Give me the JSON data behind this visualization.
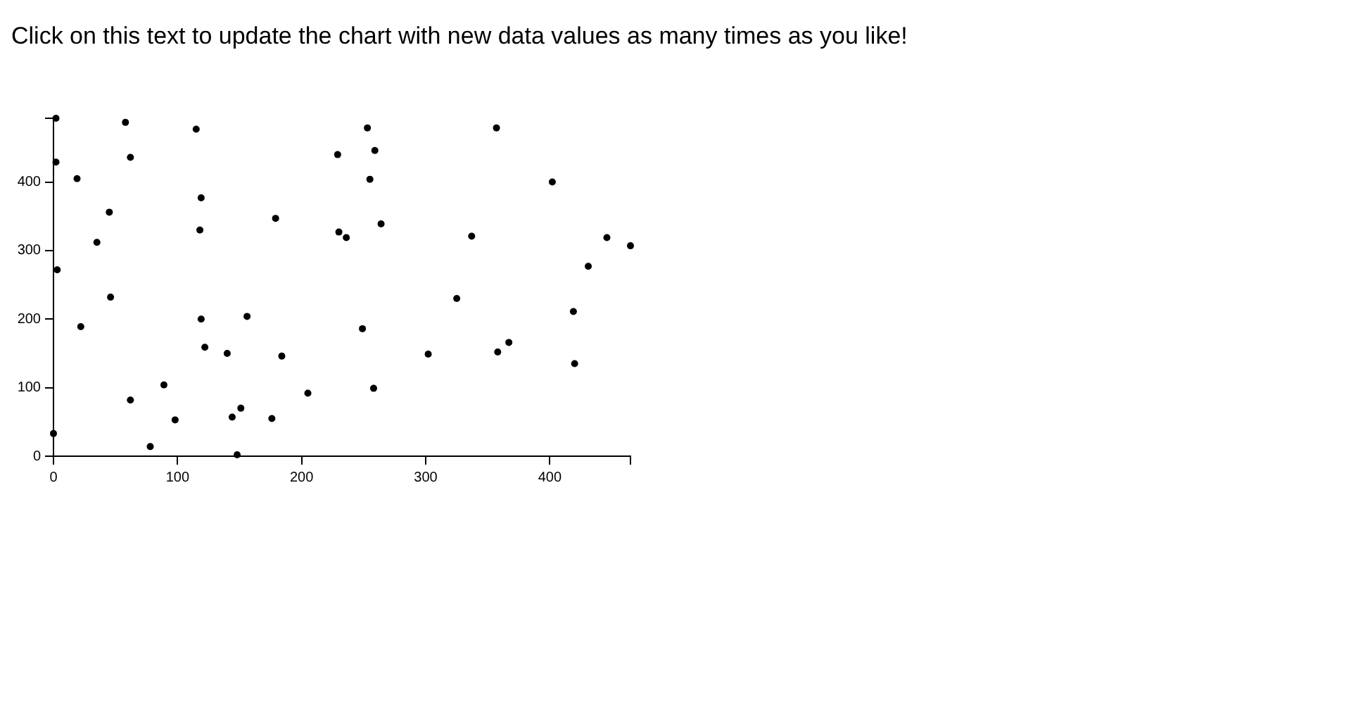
{
  "chart_data": {
    "type": "scatter",
    "title": "Click on this text to update the chart with new data values as many times as you like!",
    "x": [
      2,
      58,
      115,
      2,
      62,
      19,
      119,
      45,
      118,
      35,
      3,
      253,
      259,
      229,
      255,
      179,
      264,
      230,
      236,
      357,
      402,
      337,
      446,
      465,
      431,
      46,
      22,
      119,
      122,
      89,
      62,
      98,
      78,
      0,
      156,
      249,
      140,
      184,
      302,
      205,
      258,
      151,
      144,
      176,
      148,
      325,
      419,
      367,
      358,
      420
    ],
    "values": [
      493,
      487,
      477,
      429,
      436,
      405,
      377,
      356,
      330,
      312,
      272,
      479,
      446,
      440,
      404,
      347,
      339,
      327,
      319,
      479,
      400,
      321,
      319,
      307,
      277,
      232,
      189,
      200,
      159,
      104,
      82,
      53,
      14,
      33,
      204,
      186,
      150,
      146,
      149,
      92,
      99,
      70,
      57,
      55,
      2,
      230,
      211,
      166,
      152,
      135
    ],
    "color": "#000000",
    "marker": "circle",
    "xlim": [
      0,
      465
    ],
    "xticks": [
      0,
      100,
      200,
      300,
      400,
      {
        "value": 465,
        "label": null
      }
    ],
    "ylim": [
      0,
      493
    ],
    "yticks": [
      0,
      100,
      200,
      300,
      400,
      {
        "value": 493,
        "label": null
      }
    ]
  }
}
